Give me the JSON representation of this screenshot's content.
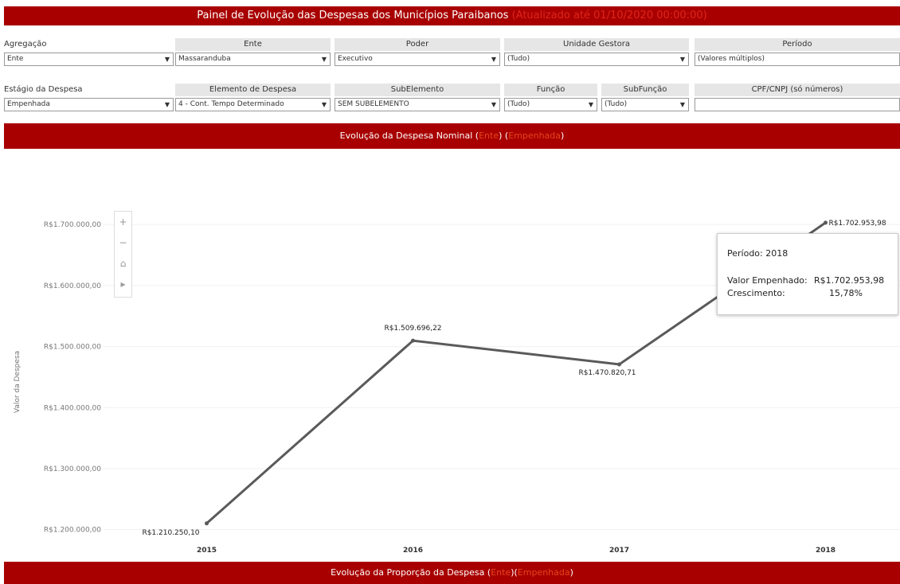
{
  "header": {
    "title": "Painel de Evolução das Despesas dos Municípios Paraibanos",
    "updated": "(Atualizado até 01/10/2020 00:00:00)"
  },
  "filters": [
    {
      "label": "Agregação",
      "value": "Ente"
    },
    {
      "label": "Ente",
      "value": "Massaranduba"
    },
    {
      "label": "Poder",
      "value": "Executivo"
    },
    {
      "label": "Unidade Gestora",
      "value": "(Tudo)"
    },
    {
      "label": "Período",
      "value": "(Valores múltiplos)"
    },
    {
      "label": "Estágio da Despesa",
      "value": "Empenhada"
    },
    {
      "label": "Elemento de Despesa",
      "value": "4 - Cont. Tempo Determinado"
    },
    {
      "label": "SubElemento",
      "value": "SEM SUBELEMENTO"
    },
    {
      "label": "Função",
      "value": "(Tudo)"
    },
    {
      "label": "SubFunção",
      "value": "(Tudo)"
    },
    {
      "label": "CPF/CNPJ (só números)"
    }
  ],
  "sections": [
    {
      "prefix": "Evolução da Despesa Nominal (",
      "aggregation": "Ente",
      "middle": ") (",
      "stage": "Empenhada",
      "suffix": ")"
    },
    {
      "prefix": "Evolução da Proporção da Despesa (",
      "aggregation": "Ente",
      "middle": ")(",
      "stage": "Empenhada",
      "suffix": ")"
    }
  ],
  "chart_data": {
    "type": "line",
    "y_label": "Valor da Despesa",
    "categories": [
      "2015",
      "2016",
      "2017",
      "2018"
    ],
    "values": [
      1210250.1,
      1509696.22,
      1470820.71,
      1702953.98
    ],
    "value_labels": [
      "R$1.210.250,10",
      "R$1.509.696,22",
      "R$1.470.820,71",
      "R$1.702.953,98"
    ],
    "color": "#5a5a5a",
    "ylim": [
      1180000,
      1755000
    ],
    "yticks": [
      {
        "value": 1200000,
        "label": "R$1.200.000,00"
      },
      {
        "value": 1300000,
        "label": "R$1.300.000,00"
      },
      {
        "value": 1400000,
        "label": "R$1.400.000,00"
      },
      {
        "value": 1500000,
        "label": "R$1.500.000,00"
      },
      {
        "value": 1600000,
        "label": "R$1.600.000,00"
      },
      {
        "value": 1700000,
        "label": "R$1.700.000,00"
      }
    ],
    "grid": true
  },
  "tooltip": {
    "period": "Período: 2018",
    "value_label": "Valor Empenhado:",
    "value": "R$1.702.953,98",
    "growth_label": "Crescimento:",
    "growth": "15,78%"
  }
}
